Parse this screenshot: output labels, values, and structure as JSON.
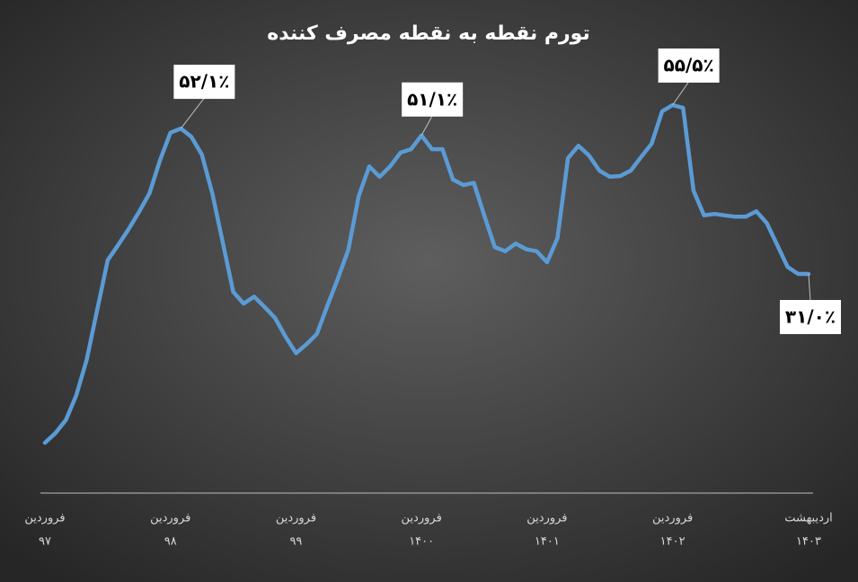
{
  "chart_data": {
    "type": "line",
    "title": "تورم نقطه به نقطه مصرف کننده",
    "color": "#5b9bd5",
    "categories": [
      [
        "فروردین",
        "۹۷"
      ],
      null,
      null,
      null,
      null,
      null,
      null,
      null,
      null,
      null,
      null,
      null,
      [
        "فروردین",
        "۹۸"
      ],
      null,
      null,
      null,
      null,
      null,
      null,
      null,
      null,
      null,
      null,
      null,
      [
        "فروردین",
        "۹۹"
      ],
      null,
      null,
      null,
      null,
      null,
      null,
      null,
      null,
      null,
      null,
      null,
      [
        "فروردین",
        "۱۴۰۰"
      ],
      null,
      null,
      null,
      null,
      null,
      null,
      null,
      null,
      null,
      null,
      null,
      [
        "فروردین",
        "۱۴۰۱"
      ],
      null,
      null,
      null,
      null,
      null,
      null,
      null,
      null,
      null,
      null,
      null,
      [
        "فروردین",
        "۱۴۰۲"
      ],
      null,
      null,
      null,
      null,
      null,
      null,
      null,
      null,
      null,
      null,
      null,
      null,
      [
        "اردیبهشت",
        "۱۴۰۳"
      ]
    ],
    "values": [
      6.5,
      7.9,
      9.8,
      13.4,
      18.6,
      25.8,
      33.0,
      35.2,
      37.5,
      40.0,
      42.7,
      47.5,
      51.5,
      52.1,
      50.9,
      48.3,
      42.7,
      35.6,
      28.4,
      26.7,
      27.7,
      26.2,
      24.6,
      21.9,
      19.5,
      20.8,
      22.3,
      26.4,
      30.3,
      34.5,
      42.3,
      46.6,
      45.1,
      46.6,
      48.6,
      49.1,
      51.1,
      49.1,
      49.1,
      44.7,
      43.9,
      44.2,
      39.5,
      34.9,
      34.3,
      35.4,
      34.6,
      34.3,
      32.7,
      36.2,
      47.8,
      49.6,
      48.2,
      46.0,
      45.1,
      45.2,
      46.0,
      48.0,
      49.9,
      54.6,
      55.5,
      55.1,
      43.1,
      39.5,
      39.7,
      39.5,
      39.3,
      39.3,
      40.1,
      38.4,
      35.2,
      32.0,
      31.0,
      31.0
    ],
    "value_labels": [
      null,
      null,
      null,
      null,
      null,
      null,
      null,
      null,
      null,
      null,
      null,
      null,
      null,
      "۵۲/۱٪",
      null,
      null,
      null,
      null,
      null,
      null,
      null,
      null,
      null,
      null,
      null,
      null,
      null,
      null,
      null,
      null,
      null,
      null,
      null,
      null,
      null,
      null,
      "۵۱/۱٪",
      null,
      null,
      null,
      null,
      null,
      null,
      null,
      null,
      null,
      null,
      null,
      null,
      null,
      null,
      null,
      null,
      null,
      null,
      null,
      null,
      null,
      null,
      null,
      "۵۵/۵٪",
      null,
      null,
      null,
      null,
      null,
      null,
      null,
      null,
      null,
      null,
      null,
      null,
      "۳۱/۰٪"
    ]
  }
}
